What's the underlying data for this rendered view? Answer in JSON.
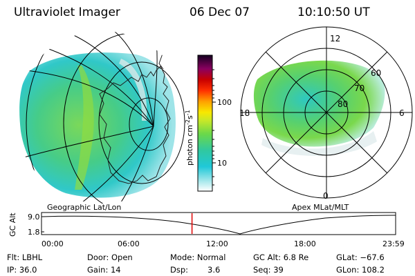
{
  "header": {
    "instrument": "Ultraviolet Imager",
    "date": "06 Dec 07",
    "time": "10:10:50 UT"
  },
  "colorbar": {
    "label": "photon cm",
    "label_sup1": "-2",
    "label_mid": "s",
    "label_sup2": "-1",
    "ticks": [
      "100",
      "10"
    ]
  },
  "left_panel": {
    "label": "Geographic Lat/Lon"
  },
  "right_panel": {
    "label": "Apex MLat/MLT",
    "mlt_labels": {
      "top": "12",
      "left": "18",
      "right": "6",
      "bottom": "0"
    },
    "lat_labels": [
      "60",
      "70",
      "80"
    ]
  },
  "altitude_plot": {
    "ylabel": "GC Alt",
    "ytick_top": "9.0",
    "ytick_bottom": "1.8",
    "time_ticks": [
      "00:00",
      "06:00",
      "12:00",
      "18:00",
      "23:59"
    ],
    "current_time_fraction": 0.425,
    "marker_color": "#e00000"
  },
  "status": {
    "row1": {
      "flt": "Flt: LBHL",
      "door": "Door: Open",
      "mode": "Mode: Normal",
      "gc_alt": "GC Alt: 6.8 Re",
      "glat": "GLat: −67.6"
    },
    "row2": {
      "ip": "IP: 36.0",
      "gain": "Gain: 14",
      "dsp_label": "Dsp:",
      "dsp_value": "3.6",
      "seq": "Seq: 39",
      "glon": "GLon: 108.2"
    }
  }
}
